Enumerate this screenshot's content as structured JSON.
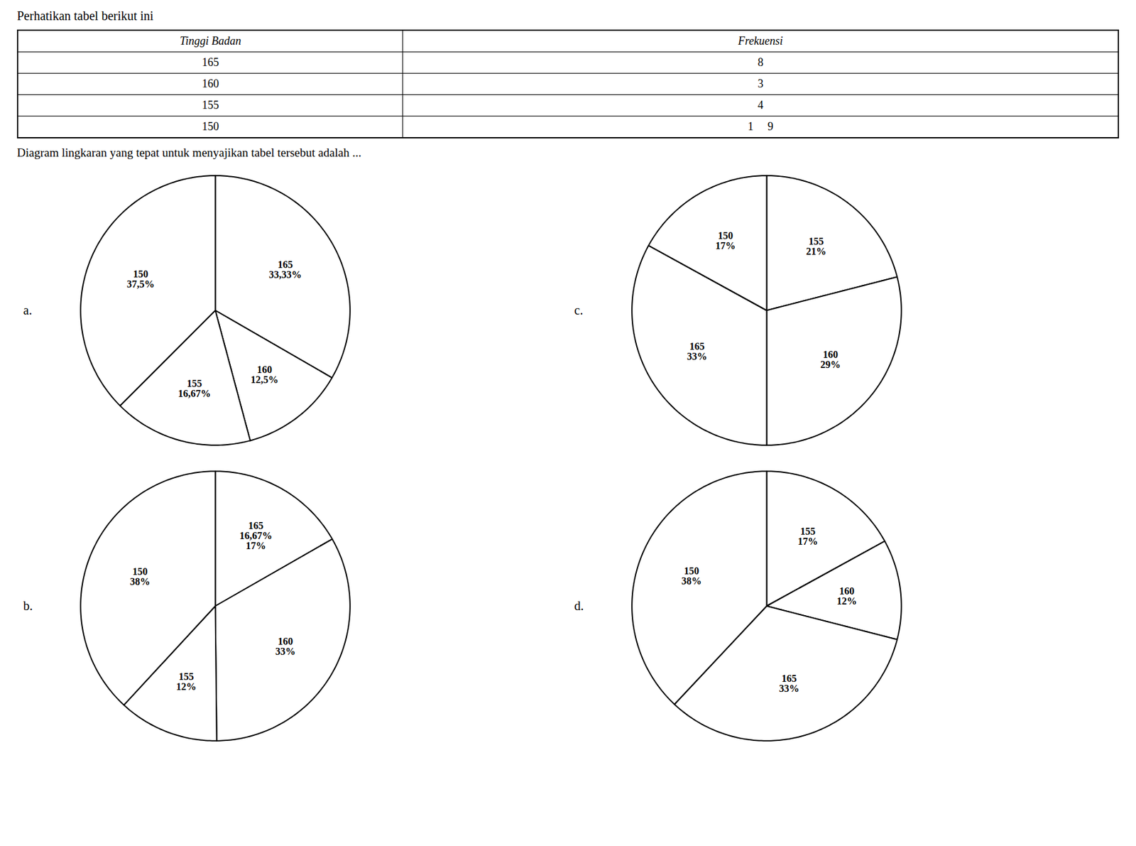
{
  "title": "Perhatikan tabel berikut ini",
  "subtitle": "Diagram lingkaran yang tepat untuk menyajikan tabel tersebut adalah ...",
  "table": {
    "headers": [
      "Tinggi Badan",
      "Frekuensi"
    ],
    "rows": [
      [
        "165",
        "8"
      ],
      [
        "160",
        "3"
      ],
      [
        "155",
        "4"
      ],
      [
        "150",
        "1     9"
      ]
    ]
  },
  "chart_data": [
    {
      "type": "pie",
      "title": "a.",
      "color": "white",
      "data_labels": true,
      "categories": [
        "165",
        "160",
        "155",
        "150"
      ],
      "values": [
        33.33,
        12.5,
        16.67,
        37.5
      ],
      "value_labels": [
        "33,33%",
        "12,5%",
        "16,67%",
        "37,5%"
      ]
    },
    {
      "type": "pie",
      "title": "b.",
      "color": "white",
      "data_labels": true,
      "categories": [
        "165",
        "160",
        "155",
        "150"
      ],
      "values": [
        16.67,
        33.0,
        12.0,
        38.0
      ],
      "value_labels": [
        "16,67%\n17%",
        "33%",
        "12%",
        "38%"
      ]
    },
    {
      "type": "pie",
      "title": "c.",
      "color": "white",
      "data_labels": true,
      "categories": [
        "155",
        "160",
        "165",
        "150"
      ],
      "values": [
        21.0,
        29.0,
        33.0,
        17.0
      ],
      "value_labels": [
        "21%",
        "29%",
        "33%",
        "17%"
      ]
    },
    {
      "type": "pie",
      "title": "d.",
      "color": "white",
      "data_labels": true,
      "categories": [
        "155",
        "160",
        "165",
        "150"
      ],
      "values": [
        17.0,
        12.0,
        33.0,
        38.0
      ],
      "value_labels": [
        "17%",
        "12%",
        "33%",
        "38%"
      ]
    }
  ]
}
